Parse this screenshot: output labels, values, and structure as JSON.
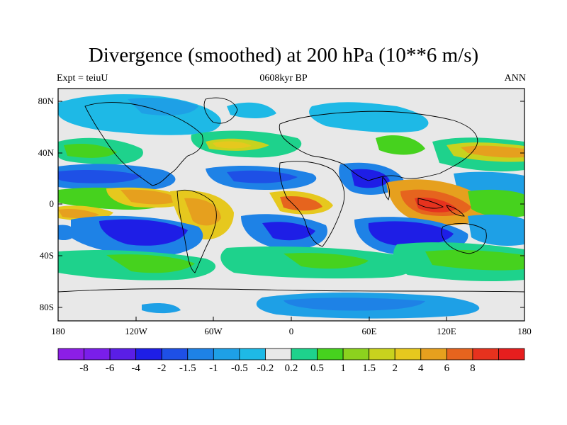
{
  "title": "Divergence (smoothed) at 200 hPa (10**6 m/s)",
  "subtitle_left": "Expt = teiuU",
  "subtitle_center": "0608kyr BP",
  "subtitle_right": "ANN",
  "lat_labels": [
    "80N",
    "40N",
    "0",
    "40S",
    "80S"
  ],
  "lon_labels": [
    "180",
    "120W",
    "60W",
    "0",
    "60E",
    "120E",
    "180"
  ],
  "colorbar": {
    "colors": [
      "#8c1ee6",
      "#7a1eea",
      "#5a1ee6",
      "#1e1ee6",
      "#1e50e6",
      "#1e82e6",
      "#1ea0e6",
      "#1eb9e6",
      "#e8e8e8",
      "#1ed28c",
      "#46d21e",
      "#8cd21e",
      "#c8d21e",
      "#e6c81e",
      "#e6a01e",
      "#e6641e",
      "#e6321e",
      "#e61e1e"
    ],
    "labels": [
      "-8",
      "-6",
      "-4",
      "-2",
      "-1.5",
      "-1",
      "-0.5",
      "-0.2",
      "0.2",
      "0.5",
      "1",
      "1.5",
      "2",
      "4",
      "6",
      "8"
    ]
  }
}
